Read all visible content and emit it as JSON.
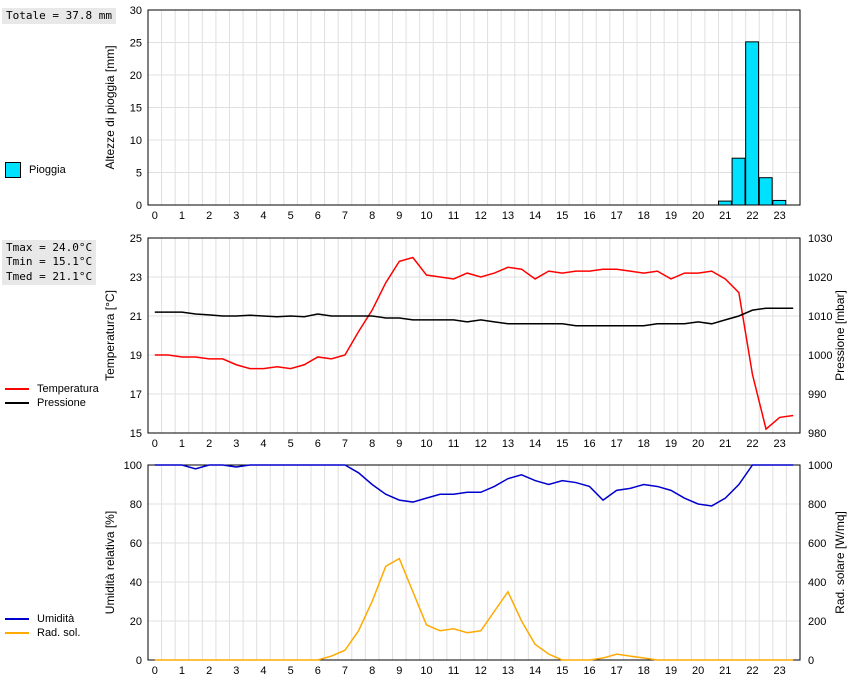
{
  "global": {
    "x_categories": [
      0,
      1,
      2,
      3,
      4,
      5,
      6,
      7,
      8,
      9,
      10,
      11,
      12,
      13,
      14,
      15,
      16,
      17,
      18,
      19,
      20,
      21,
      22,
      23
    ],
    "half_hour_index": [
      0,
      0.5,
      1,
      1.5,
      2,
      2.5,
      3,
      3.5,
      4,
      4.5,
      5,
      5.5,
      6,
      6.5,
      7,
      7.5,
      8,
      8.5,
      9,
      9.5,
      10,
      10.5,
      11,
      11.5,
      12,
      12.5,
      13,
      13.5,
      14,
      14.5,
      15,
      15.5,
      16,
      16.5,
      17,
      17.5,
      18,
      18.5,
      19,
      19.5,
      20,
      20.5,
      21,
      21.5,
      22,
      22.5,
      23,
      23.5
    ],
    "x_label_fontsize": 11,
    "grid_color": "#e0e0e0",
    "background_color": "#ffffff",
    "border_color": "#000000"
  },
  "chart1": {
    "type": "bar",
    "title_box": "Totale = 37.8 mm",
    "ylabel": "Altezze di pioggia [mm]",
    "ylim": [
      0,
      30
    ],
    "ytick_step": 5,
    "bar_color": "#00e0ff",
    "bar_border": "#000000",
    "bars": [
      {
        "x": 21,
        "v": 0.6
      },
      {
        "x": 21.5,
        "v": 7.2
      },
      {
        "x": 22,
        "v": 25.1
      },
      {
        "x": 22.5,
        "v": 4.2
      },
      {
        "x": 23,
        "v": 0.7
      }
    ],
    "legend": {
      "color": "#00e0ff",
      "label": "Pioggia"
    }
  },
  "chart2": {
    "type": "line_dual",
    "stats_box": [
      "Tmax = 24.0°C",
      "Tmin = 15.1°C",
      "Tmed = 21.1°C"
    ],
    "yleft_label": "Temperatura [°C]",
    "yright_label": "Pressione [mbar]",
    "yleft_lim": [
      15,
      25
    ],
    "yleft_tick_step": 2,
    "yright_lim": [
      980,
      1030
    ],
    "yright_tick_step": 10,
    "series": [
      {
        "name": "Temperatura",
        "color": "#ff0000",
        "axis": "left",
        "width": 1.5,
        "values": [
          19.0,
          19.0,
          18.9,
          18.9,
          18.8,
          18.8,
          18.5,
          18.3,
          18.3,
          18.4,
          18.3,
          18.5,
          18.9,
          18.8,
          19.0,
          20.2,
          21.3,
          22.7,
          23.8,
          24.0,
          23.1,
          23.0,
          22.9,
          23.2,
          23.0,
          23.2,
          23.5,
          23.4,
          22.9,
          23.3,
          23.2,
          23.3,
          23.3,
          23.4,
          23.4,
          23.3,
          23.2,
          23.3,
          22.9,
          23.2,
          23.2,
          23.3,
          22.9,
          22.2,
          18.0,
          15.2,
          15.8,
          15.9
        ]
      },
      {
        "name": "Pressione",
        "color": "#000000",
        "axis": "right",
        "width": 1.5,
        "values": [
          1011,
          1011,
          1011,
          1010.5,
          1010.3,
          1010,
          1010,
          1010.2,
          1010,
          1009.8,
          1010,
          1009.8,
          1010.5,
          1010,
          1010,
          1010,
          1010,
          1009.5,
          1009.5,
          1009,
          1009,
          1009,
          1009,
          1008.5,
          1009,
          1008.5,
          1008,
          1008,
          1008,
          1008,
          1008,
          1007.5,
          1007.5,
          1007.5,
          1007.5,
          1007.5,
          1007.5,
          1008,
          1008,
          1008,
          1008.5,
          1008,
          1009,
          1010,
          1011.5,
          1012,
          1012,
          1012
        ]
      }
    ],
    "legend": [
      {
        "color": "#ff0000",
        "label": "Temperatura"
      },
      {
        "color": "#000000",
        "label": "Pressione"
      }
    ]
  },
  "chart3": {
    "type": "line_dual",
    "yleft_label": "Umidità relativa [%]",
    "yright_label": "Rad. solare [W/mq]",
    "yleft_lim": [
      0,
      100
    ],
    "yleft_tick_step": 20,
    "yright_lim": [
      0,
      1000
    ],
    "yright_tick_step": 200,
    "series": [
      {
        "name": "Umidità",
        "color": "#0000cc",
        "axis": "left",
        "width": 1.5,
        "values": [
          100,
          100,
          100,
          98,
          100,
          100,
          99,
          100,
          100,
          100,
          100,
          100,
          100,
          100,
          100,
          96,
          90,
          85,
          82,
          81,
          83,
          85,
          85,
          86,
          86,
          89,
          93,
          95,
          92,
          90,
          92,
          91,
          89,
          82,
          87,
          88,
          90,
          89,
          87,
          83,
          80,
          79,
          83,
          90,
          100,
          100,
          100,
          100
        ]
      },
      {
        "name": "Rad. sol.",
        "color": "#ffaa00",
        "axis": "left_as_right",
        "width": 1.5,
        "values": [
          0,
          0,
          0,
          0,
          0,
          0,
          0,
          0,
          0,
          0,
          0,
          0,
          0,
          2,
          5,
          15,
          30,
          48,
          52,
          35,
          18,
          15,
          16,
          14,
          15,
          25,
          35,
          20,
          8,
          3,
          0,
          0,
          0,
          1,
          3,
          2,
          1,
          0,
          0,
          0,
          0,
          0,
          0,
          0,
          0,
          0,
          0,
          0
        ]
      }
    ],
    "legend": [
      {
        "color": "#0000cc",
        "label": "Umidità"
      },
      {
        "color": "#ffaa00",
        "label": "Rad. sol."
      }
    ]
  }
}
